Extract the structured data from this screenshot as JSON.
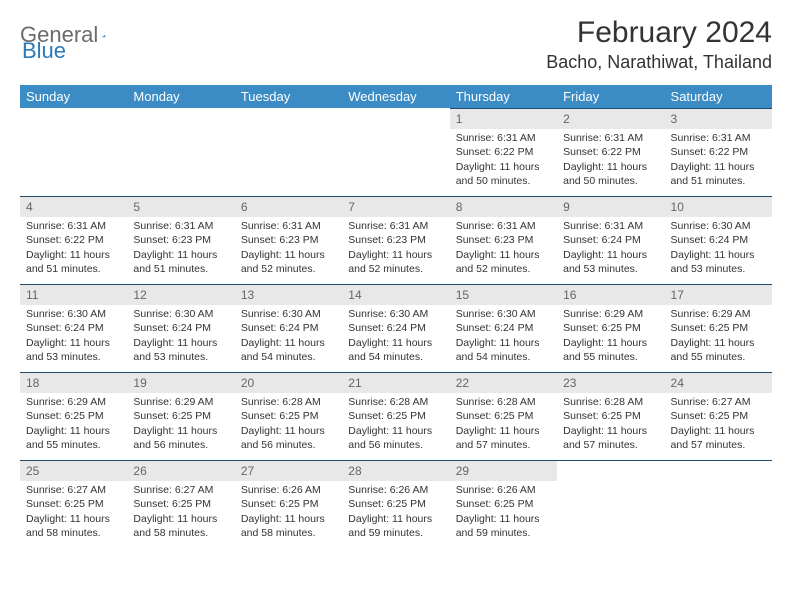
{
  "logo": {
    "word1": "General",
    "word2": "Blue"
  },
  "header": {
    "month_title": "February 2024",
    "location": "Bacho, Narathiwat, Thailand"
  },
  "colors": {
    "header_bg": "#3b8bc4",
    "header_text": "#ffffff",
    "daynum_bg": "#e8e8e8",
    "daynum_border": "#1e4a6e",
    "text": "#333333",
    "logo_gray": "#6b6b6b",
    "logo_blue": "#2a7ab8"
  },
  "weekdays": [
    "Sunday",
    "Monday",
    "Tuesday",
    "Wednesday",
    "Thursday",
    "Friday",
    "Saturday"
  ],
  "weeks": [
    [
      null,
      null,
      null,
      null,
      {
        "n": "1",
        "sr": "Sunrise: 6:31 AM",
        "ss": "Sunset: 6:22 PM",
        "dl": "Daylight: 11 hours and 50 minutes."
      },
      {
        "n": "2",
        "sr": "Sunrise: 6:31 AM",
        "ss": "Sunset: 6:22 PM",
        "dl": "Daylight: 11 hours and 50 minutes."
      },
      {
        "n": "3",
        "sr": "Sunrise: 6:31 AM",
        "ss": "Sunset: 6:22 PM",
        "dl": "Daylight: 11 hours and 51 minutes."
      }
    ],
    [
      {
        "n": "4",
        "sr": "Sunrise: 6:31 AM",
        "ss": "Sunset: 6:22 PM",
        "dl": "Daylight: 11 hours and 51 minutes."
      },
      {
        "n": "5",
        "sr": "Sunrise: 6:31 AM",
        "ss": "Sunset: 6:23 PM",
        "dl": "Daylight: 11 hours and 51 minutes."
      },
      {
        "n": "6",
        "sr": "Sunrise: 6:31 AM",
        "ss": "Sunset: 6:23 PM",
        "dl": "Daylight: 11 hours and 52 minutes."
      },
      {
        "n": "7",
        "sr": "Sunrise: 6:31 AM",
        "ss": "Sunset: 6:23 PM",
        "dl": "Daylight: 11 hours and 52 minutes."
      },
      {
        "n": "8",
        "sr": "Sunrise: 6:31 AM",
        "ss": "Sunset: 6:23 PM",
        "dl": "Daylight: 11 hours and 52 minutes."
      },
      {
        "n": "9",
        "sr": "Sunrise: 6:31 AM",
        "ss": "Sunset: 6:24 PM",
        "dl": "Daylight: 11 hours and 53 minutes."
      },
      {
        "n": "10",
        "sr": "Sunrise: 6:30 AM",
        "ss": "Sunset: 6:24 PM",
        "dl": "Daylight: 11 hours and 53 minutes."
      }
    ],
    [
      {
        "n": "11",
        "sr": "Sunrise: 6:30 AM",
        "ss": "Sunset: 6:24 PM",
        "dl": "Daylight: 11 hours and 53 minutes."
      },
      {
        "n": "12",
        "sr": "Sunrise: 6:30 AM",
        "ss": "Sunset: 6:24 PM",
        "dl": "Daylight: 11 hours and 53 minutes."
      },
      {
        "n": "13",
        "sr": "Sunrise: 6:30 AM",
        "ss": "Sunset: 6:24 PM",
        "dl": "Daylight: 11 hours and 54 minutes."
      },
      {
        "n": "14",
        "sr": "Sunrise: 6:30 AM",
        "ss": "Sunset: 6:24 PM",
        "dl": "Daylight: 11 hours and 54 minutes."
      },
      {
        "n": "15",
        "sr": "Sunrise: 6:30 AM",
        "ss": "Sunset: 6:24 PM",
        "dl": "Daylight: 11 hours and 54 minutes."
      },
      {
        "n": "16",
        "sr": "Sunrise: 6:29 AM",
        "ss": "Sunset: 6:25 PM",
        "dl": "Daylight: 11 hours and 55 minutes."
      },
      {
        "n": "17",
        "sr": "Sunrise: 6:29 AM",
        "ss": "Sunset: 6:25 PM",
        "dl": "Daylight: 11 hours and 55 minutes."
      }
    ],
    [
      {
        "n": "18",
        "sr": "Sunrise: 6:29 AM",
        "ss": "Sunset: 6:25 PM",
        "dl": "Daylight: 11 hours and 55 minutes."
      },
      {
        "n": "19",
        "sr": "Sunrise: 6:29 AM",
        "ss": "Sunset: 6:25 PM",
        "dl": "Daylight: 11 hours and 56 minutes."
      },
      {
        "n": "20",
        "sr": "Sunrise: 6:28 AM",
        "ss": "Sunset: 6:25 PM",
        "dl": "Daylight: 11 hours and 56 minutes."
      },
      {
        "n": "21",
        "sr": "Sunrise: 6:28 AM",
        "ss": "Sunset: 6:25 PM",
        "dl": "Daylight: 11 hours and 56 minutes."
      },
      {
        "n": "22",
        "sr": "Sunrise: 6:28 AM",
        "ss": "Sunset: 6:25 PM",
        "dl": "Daylight: 11 hours and 57 minutes."
      },
      {
        "n": "23",
        "sr": "Sunrise: 6:28 AM",
        "ss": "Sunset: 6:25 PM",
        "dl": "Daylight: 11 hours and 57 minutes."
      },
      {
        "n": "24",
        "sr": "Sunrise: 6:27 AM",
        "ss": "Sunset: 6:25 PM",
        "dl": "Daylight: 11 hours and 57 minutes."
      }
    ],
    [
      {
        "n": "25",
        "sr": "Sunrise: 6:27 AM",
        "ss": "Sunset: 6:25 PM",
        "dl": "Daylight: 11 hours and 58 minutes."
      },
      {
        "n": "26",
        "sr": "Sunrise: 6:27 AM",
        "ss": "Sunset: 6:25 PM",
        "dl": "Daylight: 11 hours and 58 minutes."
      },
      {
        "n": "27",
        "sr": "Sunrise: 6:26 AM",
        "ss": "Sunset: 6:25 PM",
        "dl": "Daylight: 11 hours and 58 minutes."
      },
      {
        "n": "28",
        "sr": "Sunrise: 6:26 AM",
        "ss": "Sunset: 6:25 PM",
        "dl": "Daylight: 11 hours and 59 minutes."
      },
      {
        "n": "29",
        "sr": "Sunrise: 6:26 AM",
        "ss": "Sunset: 6:25 PM",
        "dl": "Daylight: 11 hours and 59 minutes."
      },
      null,
      null
    ]
  ]
}
